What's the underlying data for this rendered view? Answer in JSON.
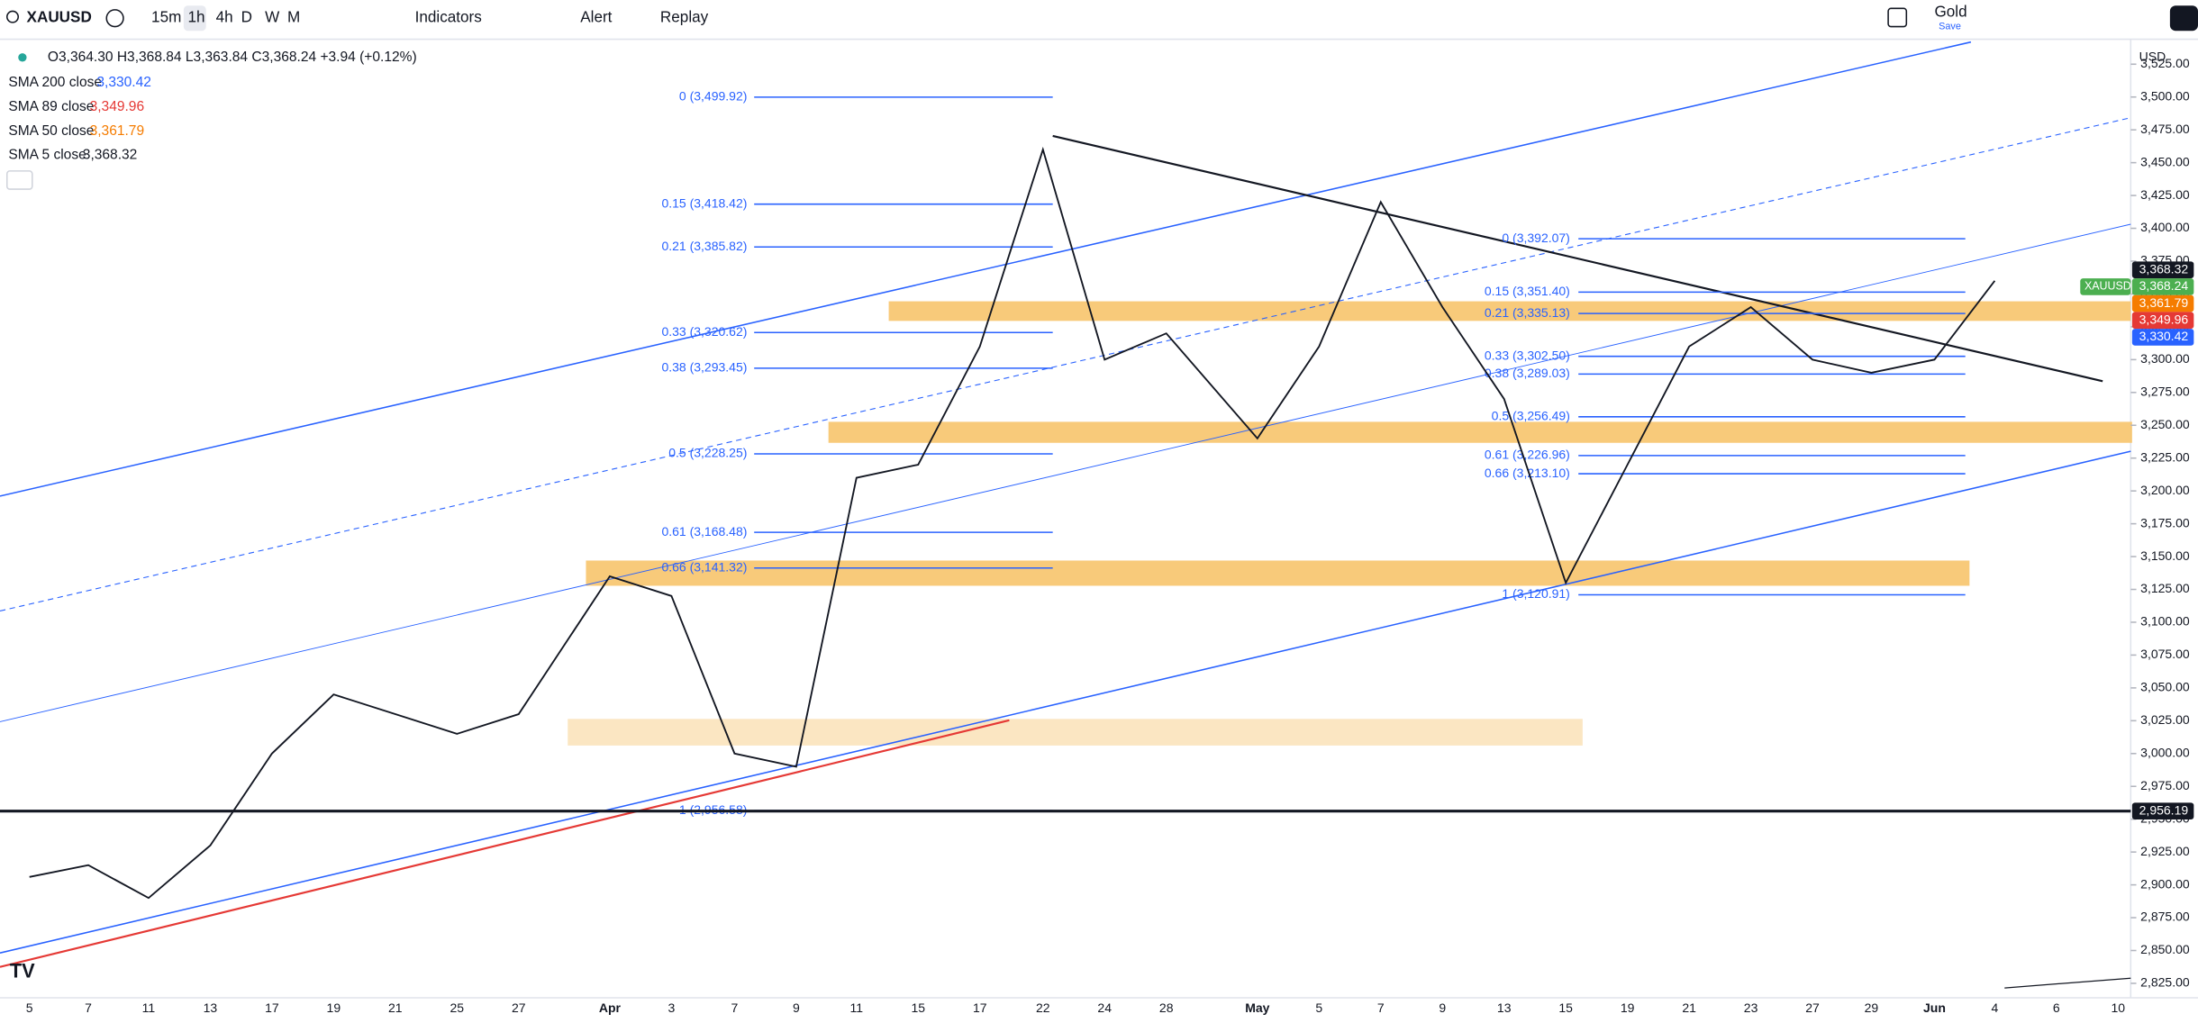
{
  "toolbar": {
    "symbol": "XAUUSD",
    "intervals": [
      "15m",
      "1h",
      "4h",
      "D",
      "W",
      "M"
    ],
    "indicators": "Indicators",
    "alert": "Alert",
    "replay": "Replay",
    "watch_name": "Gold",
    "save": "Save"
  },
  "legend": {
    "ohlc": "O3,364.30 H3,368.84 L3,363.84 C3,368.24 +3.94 (+0.12%)",
    "studies": [
      {
        "name": "SMA 200 close",
        "value": "3,330.42",
        "color": "#2962ff"
      },
      {
        "name": "SMA 89 close",
        "value": "3,349.96",
        "color": "#e53935"
      },
      {
        "name": "SMA 50 close",
        "value": "3,361.79",
        "color": "#f57c00"
      },
      {
        "name": "SMA 5 close",
        "value": "3,368.32",
        "color": "#131722"
      }
    ]
  },
  "chart_data": {
    "type": "line",
    "currency": "USD",
    "x": [
      "5",
      "7",
      "11",
      "13",
      "17",
      "19",
      "21",
      "25",
      "27",
      "Apr",
      "3",
      "7",
      "9",
      "11",
      "15",
      "17",
      "22",
      "24",
      "28",
      "May",
      "5",
      "7",
      "9",
      "13",
      "15",
      "19",
      "21",
      "23",
      "27",
      "29",
      "Jun",
      "4",
      "6",
      "10"
    ],
    "series": [
      {
        "name": "XAUUSD",
        "color": "#131722",
        "values": [
          2906,
          2915,
          2890,
          2930,
          3000,
          3045,
          3030,
          3015,
          3030,
          3135,
          3120,
          3000,
          2990,
          3210,
          3220,
          3310,
          3460,
          3300,
          3320,
          3240,
          3310,
          3420,
          3340,
          3270,
          3130,
          3220,
          3310,
          3340,
          3300,
          3290,
          3300,
          3360,
          null,
          null
        ]
      }
    ],
    "ylim": [
      2814,
      3544
    ],
    "yticks": [
      {
        "value": 3525,
        "label": "3,525.00"
      },
      {
        "value": 3500,
        "label": "3,500.00"
      },
      {
        "value": 3475,
        "label": "3,475.00"
      },
      {
        "value": 3450,
        "label": "3,450.00"
      },
      {
        "value": 3425,
        "label": "3,425.00"
      },
      {
        "value": 3400,
        "label": "3,400.00"
      },
      {
        "value": 3375,
        "label": "3,375.00"
      },
      {
        "value": 3350,
        "label": "3,350.00"
      },
      {
        "value": 3325,
        "label": "3,325.00"
      },
      {
        "value": 3300,
        "label": "3,300.00"
      },
      {
        "value": 3275,
        "label": "3,275.00"
      },
      {
        "value": 3250,
        "label": "3,250.00"
      },
      {
        "value": 3225,
        "label": "3,225.00"
      },
      {
        "value": 3200,
        "label": "3,200.00"
      },
      {
        "value": 3175,
        "label": "3,175.00"
      },
      {
        "value": 3150,
        "label": "3,150.00"
      },
      {
        "value": 3125,
        "label": "3,125.00"
      },
      {
        "value": 3100,
        "label": "3,100.00"
      },
      {
        "value": 3075,
        "label": "3,075.00"
      },
      {
        "value": 3050,
        "label": "3,050.00"
      },
      {
        "value": 3025,
        "label": "3,025.00"
      },
      {
        "value": 3000,
        "label": "3,000.00"
      },
      {
        "value": 2975,
        "label": "2,975.00"
      },
      {
        "value": 2950,
        "label": "2,950.00"
      },
      {
        "value": 2925,
        "label": "2,925.00"
      },
      {
        "value": 2900,
        "label": "2,900.00"
      },
      {
        "value": 2875,
        "label": "2,875.00"
      },
      {
        "value": 2850,
        "label": "2,850.00"
      },
      {
        "value": 2825,
        "label": "2,825.00"
      }
    ],
    "fib_left": [
      {
        "price": 3499.92,
        "label": "0 (3,499.92)"
      },
      {
        "price": 3418.42,
        "label": "0.15 (3,418.42)"
      },
      {
        "price": 3385.82,
        "label": "0.21 (3,385.82)"
      },
      {
        "price": 3320.62,
        "label": "0.33 (3,320.62)"
      },
      {
        "price": 3293.45,
        "label": "0.38 (3,293.45)"
      },
      {
        "price": 3228.25,
        "label": "0.5 (3,228.25)"
      },
      {
        "price": 3168.48,
        "label": "0.61 (3,168.48)"
      },
      {
        "price": 3141.32,
        "label": "0.66 (3,141.32)"
      },
      {
        "price": 2956.58,
        "label": "1 (2,956.58)"
      }
    ],
    "fib_right": [
      {
        "price": 3392.07,
        "label": "0 (3,392.07)"
      },
      {
        "price": 3351.4,
        "label": "0.15 (3,351.40)"
      },
      {
        "price": 3335.13,
        "label": "0.21 (3,335.13)"
      },
      {
        "price": 3302.5,
        "label": "0.33 (3,302.50)"
      },
      {
        "price": 3289.03,
        "label": "0.38 (3,289.03)"
      },
      {
        "price": 3256.49,
        "label": "0.5 (3,256.49)"
      },
      {
        "price": 3226.96,
        "label": "0.61 (3,226.96)"
      },
      {
        "price": 3213.1,
        "label": "0.66 (3,213.10)"
      },
      {
        "price": 3120.91,
        "label": "1 (3,120.91)"
      }
    ],
    "price_tags": [
      {
        "value": 3368.32,
        "label": "3,368.32",
        "color": "#131722"
      },
      {
        "value": 3368.24,
        "label": "3,368.24",
        "color": "#4caf50",
        "name": "XAUUSD"
      },
      {
        "value": 3361.79,
        "label": "3,361.79",
        "color": "#f57c00"
      },
      {
        "value": 3349.96,
        "label": "3,349.96",
        "color": "#e53935"
      },
      {
        "value": 3330.42,
        "label": "3,330.42",
        "color": "#2962ff"
      },
      {
        "value": 2956.19,
        "label": "2,956.19",
        "color": "#131722"
      }
    ]
  }
}
